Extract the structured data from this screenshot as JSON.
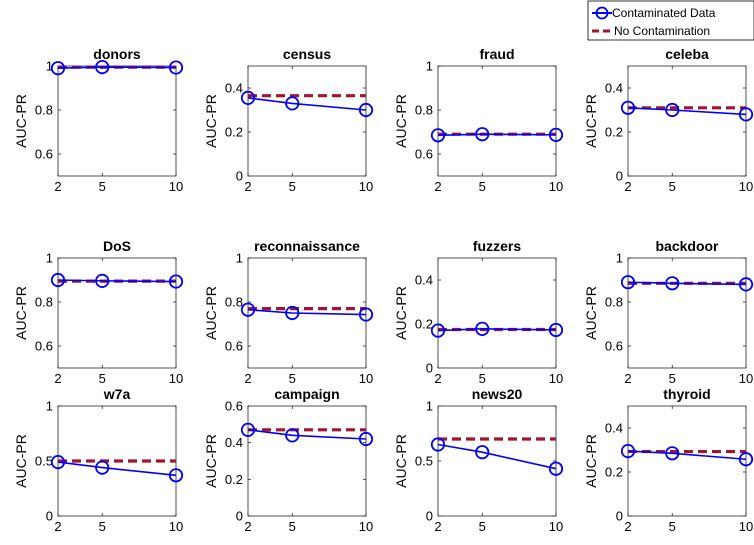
{
  "legend": {
    "items": [
      {
        "label": "Contaminated Data",
        "color": "#0000ff",
        "style": "solid-circle"
      },
      {
        "label": "No Contamination",
        "color": "#a2142f",
        "style": "dashed"
      }
    ],
    "placement": "top-right"
  },
  "colors": {
    "contaminated": "#0000ff",
    "no_contamination": "#a2142f"
  },
  "chart_data": [
    {
      "type": "line",
      "title": "donors",
      "ylabel": "AUC-PR",
      "x": [
        2,
        5,
        10
      ],
      "ylim": [
        0.5,
        1
      ],
      "yticks": [
        0.6,
        0.8,
        1
      ],
      "yticklabels": [
        "0.6",
        "0.8",
        "1"
      ],
      "series": [
        {
          "name": "Contaminated Data",
          "values": [
            0.99,
            0.995,
            0.993
          ]
        },
        {
          "name": "No Contamination",
          "values": [
            0.995,
            0.995,
            0.995
          ]
        }
      ]
    },
    {
      "type": "line",
      "title": "census",
      "ylabel": "AUC-PR",
      "x": [
        2,
        5,
        10
      ],
      "ylim": [
        0,
        0.5
      ],
      "yticks": [
        0,
        0.2,
        0.4
      ],
      "yticklabels": [
        "0",
        "0.2",
        "0.4"
      ],
      "series": [
        {
          "name": "Contaminated Data",
          "values": [
            0.355,
            0.33,
            0.3
          ]
        },
        {
          "name": "No Contamination",
          "values": [
            0.365,
            0.365,
            0.365
          ]
        }
      ]
    },
    {
      "type": "line",
      "title": "fraud",
      "ylabel": "AUC-PR",
      "x": [
        2,
        5,
        10
      ],
      "ylim": [
        0.5,
        1
      ],
      "yticks": [
        0.6,
        0.8,
        1
      ],
      "yticklabels": [
        "0.6",
        "0.8",
        "1"
      ],
      "series": [
        {
          "name": "Contaminated Data",
          "values": [
            0.685,
            0.69,
            0.687
          ]
        },
        {
          "name": "No Contamination",
          "values": [
            0.69,
            0.69,
            0.69
          ]
        }
      ]
    },
    {
      "type": "line",
      "title": "celeba",
      "ylabel": "AUC-PR",
      "x": [
        2,
        5,
        10
      ],
      "ylim": [
        0,
        0.5
      ],
      "yticks": [
        0,
        0.2,
        0.4
      ],
      "yticklabels": [
        "0",
        "0.2",
        "0.4"
      ],
      "series": [
        {
          "name": "Contaminated Data",
          "values": [
            0.31,
            0.3,
            0.28
          ]
        },
        {
          "name": "No Contamination",
          "values": [
            0.31,
            0.31,
            0.31
          ]
        }
      ]
    },
    {
      "type": "line",
      "title": "DoS",
      "ylabel": "AUC-PR",
      "x": [
        2,
        5,
        10
      ],
      "ylim": [
        0.5,
        1
      ],
      "yticks": [
        0.6,
        0.8,
        1
      ],
      "yticklabels": [
        "0.6",
        "0.8",
        "1"
      ],
      "series": [
        {
          "name": "Contaminated Data",
          "values": [
            0.9,
            0.896,
            0.893
          ]
        },
        {
          "name": "No Contamination",
          "values": [
            0.895,
            0.895,
            0.895
          ]
        }
      ]
    },
    {
      "type": "line",
      "title": "reconnaissance",
      "ylabel": "AUC-PR",
      "x": [
        2,
        5,
        10
      ],
      "ylim": [
        0.5,
        1
      ],
      "yticks": [
        0.6,
        0.8,
        1
      ],
      "yticklabels": [
        "0.6",
        "0.8",
        "1"
      ],
      "series": [
        {
          "name": "Contaminated Data",
          "values": [
            0.765,
            0.75,
            0.743
          ]
        },
        {
          "name": "No Contamination",
          "values": [
            0.77,
            0.77,
            0.77
          ]
        }
      ]
    },
    {
      "type": "line",
      "title": "fuzzers",
      "ylabel": "AUC-PR",
      "x": [
        2,
        5,
        10
      ],
      "ylim": [
        0,
        0.5
      ],
      "yticks": [
        0,
        0.2,
        0.4
      ],
      "yticklabels": [
        "0",
        "0.2",
        "0.4"
      ],
      "series": [
        {
          "name": "Contaminated Data",
          "values": [
            0.17,
            0.178,
            0.173
          ]
        },
        {
          "name": "No Contamination",
          "values": [
            0.175,
            0.175,
            0.175
          ]
        }
      ]
    },
    {
      "type": "line",
      "title": "backdoor",
      "ylabel": "AUC-PR",
      "x": [
        2,
        5,
        10
      ],
      "ylim": [
        0.5,
        1
      ],
      "yticks": [
        0.6,
        0.8,
        1
      ],
      "yticklabels": [
        "0.6",
        "0.8",
        "1"
      ],
      "series": [
        {
          "name": "Contaminated Data",
          "values": [
            0.89,
            0.885,
            0.88
          ]
        },
        {
          "name": "No Contamination",
          "values": [
            0.885,
            0.885,
            0.885
          ]
        }
      ]
    },
    {
      "type": "line",
      "title": "w7a",
      "ylabel": "AUC-PR",
      "x": [
        2,
        5,
        10
      ],
      "ylim": [
        0,
        1
      ],
      "yticks": [
        0,
        0.5,
        1
      ],
      "yticklabels": [
        "0",
        "0.5",
        "1"
      ],
      "series": [
        {
          "name": "Contaminated Data",
          "values": [
            0.49,
            0.44,
            0.37
          ]
        },
        {
          "name": "No Contamination",
          "values": [
            0.5,
            0.5,
            0.5
          ]
        }
      ]
    },
    {
      "type": "line",
      "title": "campaign",
      "ylabel": "AUC-PR",
      "x": [
        2,
        5,
        10
      ],
      "ylim": [
        0,
        0.6
      ],
      "yticks": [
        0,
        0.2,
        0.4,
        0.6
      ],
      "yticklabels": [
        "0",
        "0.2",
        "0.4",
        "0.6"
      ],
      "series": [
        {
          "name": "Contaminated Data",
          "values": [
            0.47,
            0.44,
            0.42
          ]
        },
        {
          "name": "No Contamination",
          "values": [
            0.47,
            0.47,
            0.47
          ]
        }
      ]
    },
    {
      "type": "line",
      "title": "news20",
      "ylabel": "AUC-PR",
      "x": [
        2,
        5,
        10
      ],
      "ylim": [
        0,
        1
      ],
      "yticks": [
        0,
        0.5,
        1
      ],
      "yticklabels": [
        "0",
        "0.5",
        "1"
      ],
      "series": [
        {
          "name": "Contaminated Data",
          "values": [
            0.65,
            0.58,
            0.43
          ]
        },
        {
          "name": "No Contamination",
          "values": [
            0.7,
            0.7,
            0.7
          ]
        }
      ]
    },
    {
      "type": "line",
      "title": "thyroid",
      "ylabel": "AUC-PR",
      "x": [
        2,
        5,
        10
      ],
      "ylim": [
        0,
        0.5
      ],
      "yticks": [
        0,
        0.2,
        0.4
      ],
      "yticklabels": [
        "0",
        "0.2",
        "0.4"
      ],
      "series": [
        {
          "name": "Contaminated Data",
          "values": [
            0.295,
            0.285,
            0.258
          ]
        },
        {
          "name": "No Contamination",
          "values": [
            0.293,
            0.293,
            0.293
          ]
        }
      ]
    }
  ]
}
